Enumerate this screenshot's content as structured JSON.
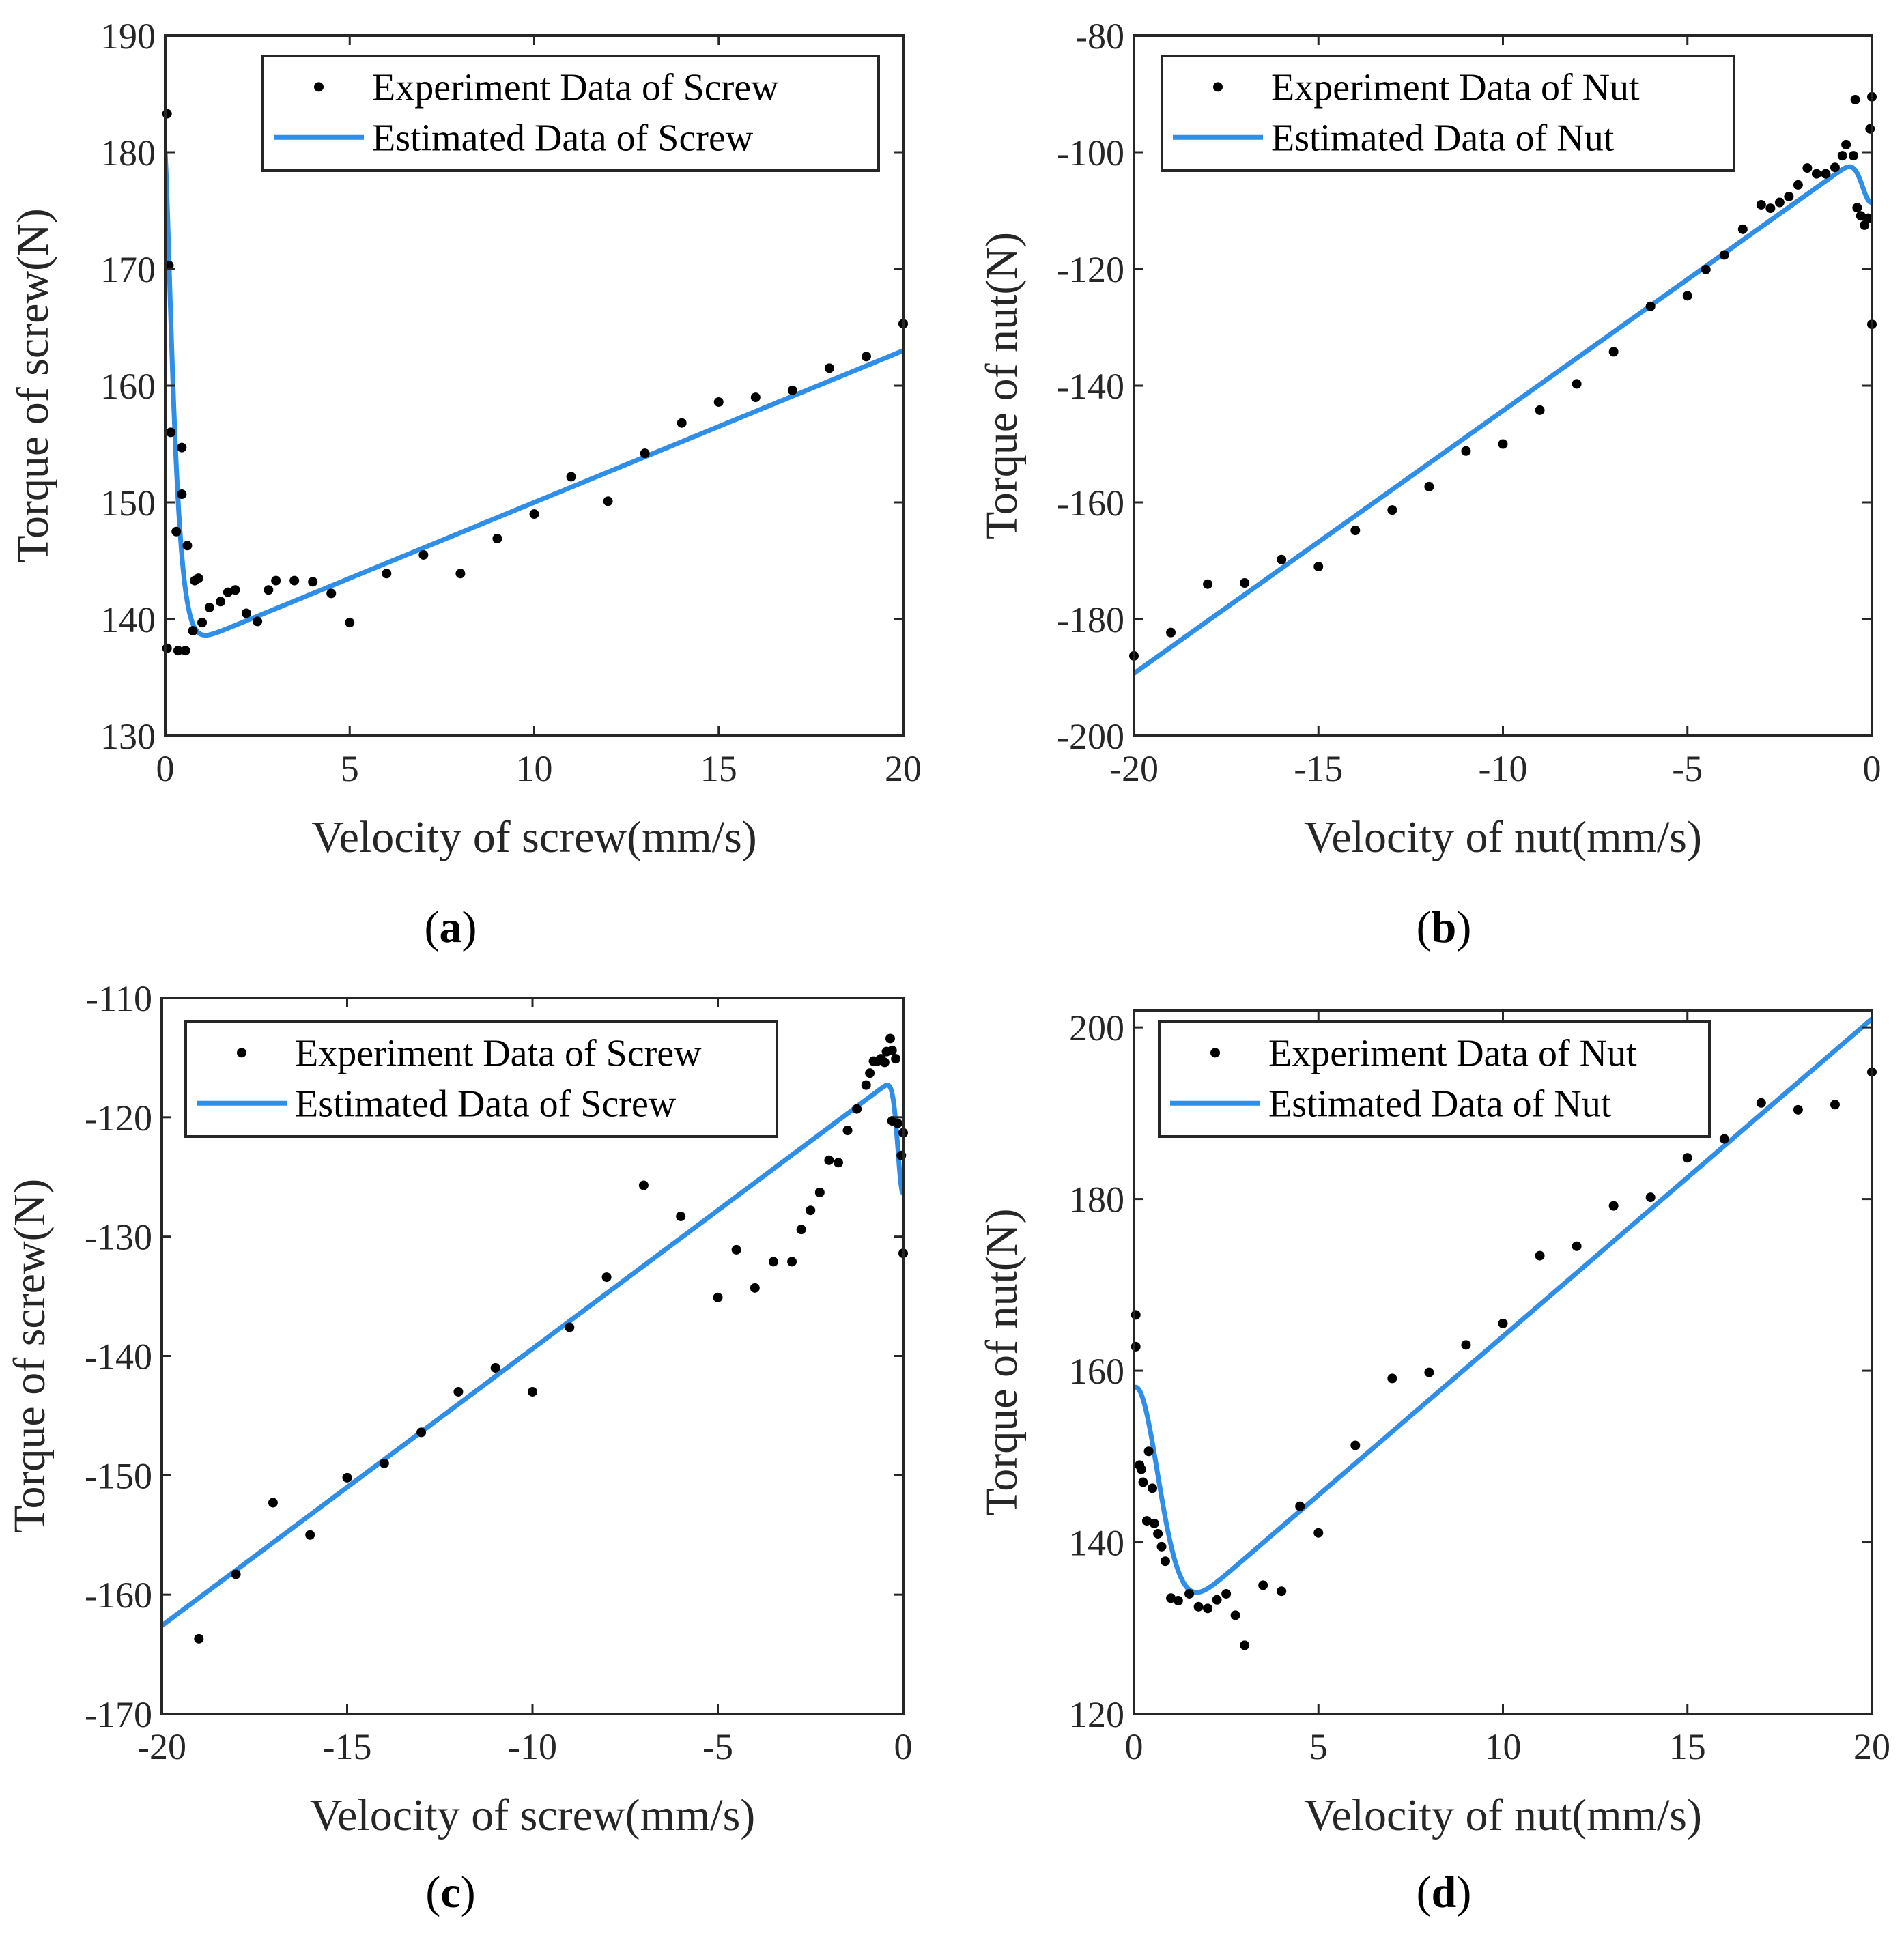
{
  "colors": {
    "estimated": "#2e8ee8",
    "experiment": "#000000",
    "axis": "#262626"
  },
  "chart_data": [
    {
      "type": "scatter+line",
      "panel_label": "a",
      "xlabel": "Velocity of screw(mm/s)",
      "ylabel": "Torque of screw(N)",
      "xlim": [
        0,
        20
      ],
      "ylim": [
        130,
        190
      ],
      "xticks": [
        0,
        5,
        10,
        15,
        20
      ],
      "yticks": [
        130,
        140,
        150,
        160,
        170,
        180,
        190
      ],
      "xtick_labels": [
        "0",
        "5",
        "10",
        "15",
        "20"
      ],
      "ytick_labels": [
        "130",
        "140",
        "150",
        "160",
        "170",
        "180",
        "190"
      ],
      "legend": {
        "position": "top-right",
        "entries": [
          "Experiment Data of Screw",
          "Estimated Data of Screw"
        ]
      },
      "series": [
        {
          "name": "Experiment Data of Screw",
          "kind": "scatter",
          "points": [
            [
              0.05,
              183.3
            ],
            [
              0.1,
              170.3
            ],
            [
              0.15,
              156
            ],
            [
              0.05,
              137.5
            ],
            [
              0.3,
              147.5
            ],
            [
              0.35,
              137.3
            ],
            [
              0.45,
              154.7
            ],
            [
              0.45,
              150.7
            ],
            [
              0.55,
              137.3
            ],
            [
              0.6,
              146.3
            ],
            [
              0.75,
              139
            ],
            [
              0.8,
              143.3
            ],
            [
              0.9,
              143.5
            ],
            [
              1.0,
              139.7
            ],
            [
              1.2,
              141
            ],
            [
              1.5,
              141.5
            ],
            [
              1.7,
              142.3
            ],
            [
              1.9,
              142.5
            ],
            [
              2.2,
              140.5
            ],
            [
              2.5,
              139.8
            ],
            [
              2.8,
              142.5
            ],
            [
              3.0,
              143.3
            ],
            [
              3.5,
              143.3
            ],
            [
              4.0,
              143.2
            ],
            [
              4.5,
              142.2
            ],
            [
              5.0,
              139.7
            ],
            [
              6,
              143.9
            ],
            [
              7,
              145.5
            ],
            [
              8,
              143.9
            ],
            [
              9,
              146.9
            ],
            [
              10,
              149
            ],
            [
              11,
              152.2
            ],
            [
              12,
              150.1
            ],
            [
              13,
              154.2
            ],
            [
              14,
              156.8
            ],
            [
              15,
              158.6
            ],
            [
              16,
              159
            ],
            [
              17,
              159.6
            ],
            [
              18,
              161.5
            ],
            [
              19,
              162.5
            ],
            [
              20,
              165.3
            ]
          ]
        },
        {
          "name": "Estimated Data of Screw",
          "kind": "line",
          "model": "stribeck",
          "coef": {
            "Fc": 137.0,
            "Fs": 180.0,
            "vs": 0.3,
            "b": 1.3,
            "alpha": 1.3
          }
        }
      ]
    },
    {
      "type": "scatter+line",
      "panel_label": "b",
      "xlabel": "Velocity of nut(mm/s)",
      "ylabel": "Torque of nut(N)",
      "xlim": [
        -20,
        0
      ],
      "ylim": [
        -200,
        -80
      ],
      "xticks": [
        -20,
        -15,
        -10,
        -5,
        0
      ],
      "yticks": [
        -200,
        -180,
        -160,
        -140,
        -120,
        -100,
        -80
      ],
      "xtick_labels": [
        "-20",
        "-15",
        "-10",
        "-5",
        "0"
      ],
      "ytick_labels": [
        "-200",
        "-180",
        "-160",
        "-140",
        "-120",
        "-100",
        "-80"
      ],
      "legend": {
        "position": "top-right",
        "entries": [
          "Experiment Data of Nut",
          "Estimated Data of Nut"
        ]
      },
      "series": [
        {
          "name": "Experiment Data of Nut",
          "kind": "scatter",
          "points": [
            [
              -20,
              -186.3
            ],
            [
              -19,
              -182.3
            ],
            [
              -18,
              -174
            ],
            [
              -17,
              -173.8
            ],
            [
              -16,
              -169.8
            ],
            [
              -15,
              -171
            ],
            [
              -14,
              -164.8
            ],
            [
              -13,
              -161.3
            ],
            [
              -12,
              -157.3
            ],
            [
              -11,
              -151.2
            ],
            [
              -10,
              -150
            ],
            [
              -9,
              -144.2
            ],
            [
              -8,
              -139.7
            ],
            [
              -7,
              -134.2
            ],
            [
              -6,
              -126.4
            ],
            [
              -5,
              -124.6
            ],
            [
              -4.5,
              -120.1
            ],
            [
              -4,
              -117.6
            ],
            [
              -3.5,
              -113.2
            ],
            [
              -3,
              -109
            ],
            [
              -2.75,
              -109.6
            ],
            [
              -2.5,
              -108.6
            ],
            [
              -2.25,
              -107.6
            ],
            [
              -2,
              -105.6
            ],
            [
              -1.75,
              -102.7
            ],
            [
              -1.5,
              -103.7
            ],
            [
              -1.25,
              -103.7
            ],
            [
              -1,
              -102.6
            ],
            [
              -0.8,
              -100.6
            ],
            [
              -0.7,
              -98.7
            ],
            [
              -0.5,
              -100.6
            ],
            [
              -0.4,
              -109.5
            ],
            [
              -0.3,
              -110.9
            ],
            [
              -0.2,
              -112.5
            ],
            [
              -0.1,
              -111.3
            ],
            [
              -0.05,
              -96
            ],
            [
              -0.45,
              -91
            ],
            [
              0,
              -90.5
            ],
            [
              0,
              -129.5
            ]
          ]
        },
        {
          "name": "Estimated Data of Nut",
          "kind": "line",
          "model": "stribeck",
          "coef": {
            "Fc": -99.3,
            "Fs": -108.5,
            "vs": 0.35,
            "b": 4.5,
            "alpha": 2
          }
        }
      ]
    },
    {
      "type": "scatter+line",
      "panel_label": "c",
      "xlabel": "Velocity of screw(mm/s)",
      "ylabel": "Torque of screw(N)",
      "xlim": [
        -20,
        0
      ],
      "ylim": [
        -170,
        -110
      ],
      "xticks": [
        -20,
        -15,
        -10,
        -5,
        0
      ],
      "yticks": [
        -170,
        -160,
        -150,
        -140,
        -130,
        -120,
        -110
      ],
      "xtick_labels": [
        "-20",
        "-15",
        "-10",
        "-5",
        "0"
      ],
      "ytick_labels": [
        "-170",
        "-160",
        "-150",
        "-140",
        "-130",
        "-120",
        "-110"
      ],
      "legend": {
        "position": "top-right",
        "entries": [
          "Experiment Data of Screw",
          "Estimated Data of Screw"
        ]
      },
      "series": [
        {
          "name": "Experiment Data of Screw",
          "kind": "scatter",
          "points": [
            [
              -19,
              -163.7
            ],
            [
              -18,
              -158.3
            ],
            [
              -17,
              -152.3
            ],
            [
              -16,
              -155
            ],
            [
              -15,
              -150.2
            ],
            [
              -14,
              -149
            ],
            [
              -13,
              -146.4
            ],
            [
              -12,
              -143
            ],
            [
              -11,
              -141
            ],
            [
              -10,
              -143
            ],
            [
              -9,
              -137.6
            ],
            [
              -8,
              -133.4
            ],
            [
              -7,
              -125.7
            ],
            [
              -6,
              -128.3
            ],
            [
              -5,
              -135.1
            ],
            [
              -4.5,
              -131.1
            ],
            [
              -4,
              -134.3
            ],
            [
              -3.5,
              -132.1
            ],
            [
              -3,
              -132.1
            ],
            [
              -2.75,
              -129.4
            ],
            [
              -2.5,
              -127.8
            ],
            [
              -2.25,
              -126.3
            ],
            [
              -2,
              -123.6
            ],
            [
              -1.75,
              -123.8
            ],
            [
              -1.5,
              -121.1
            ],
            [
              -1.25,
              -119.3
            ],
            [
              -1,
              -117.3
            ],
            [
              -0.9,
              -116.3
            ],
            [
              -0.8,
              -115.3
            ],
            [
              -0.7,
              -115.3
            ],
            [
              -0.6,
              -115.1
            ],
            [
              -0.5,
              -115.4
            ],
            [
              -0.45,
              -114.5
            ],
            [
              -0.35,
              -113.4
            ],
            [
              -0.3,
              -114.4
            ],
            [
              -0.2,
              -115.1
            ],
            [
              -0.3,
              -120.3
            ],
            [
              -0.15,
              -120.5
            ],
            [
              -0.05,
              -123.2
            ],
            [
              0,
              -121.3
            ],
            [
              0,
              -131.4
            ]
          ]
        },
        {
          "name": "Estimated Data of Screw",
          "kind": "line",
          "model": "stribeck",
          "coef": {
            "Fc": -116.2,
            "Fs": -126.4,
            "vs": 0.2,
            "b": 2.32,
            "alpha": 2
          }
        }
      ]
    },
    {
      "type": "scatter+line",
      "panel_label": "d",
      "xlabel": "Velocity of nut(mm/s)",
      "ylabel": "Torque of nut(N)",
      "xlim": [
        0,
        20
      ],
      "ylim": [
        120,
        202
      ],
      "xticks": [
        0,
        5,
        10,
        15,
        20
      ],
      "yticks": [
        120,
        140,
        160,
        180,
        200
      ],
      "xtick_labels": [
        "0",
        "5",
        "10",
        "15",
        "20"
      ],
      "ytick_labels": [
        "120",
        "140",
        "160",
        "180",
        "200"
      ],
      "legend": {
        "position": "top-right",
        "entries": [
          "Experiment Data of Nut",
          "Estimated Data of Nut"
        ]
      },
      "series": [
        {
          "name": "Experiment Data of Nut",
          "kind": "scatter",
          "points": [
            [
              0.05,
              166.5
            ],
            [
              0.05,
              162.8
            ],
            [
              0.15,
              149
            ],
            [
              0.2,
              148.5
            ],
            [
              0.25,
              147
            ],
            [
              0.35,
              142.5
            ],
            [
              0.4,
              150.6
            ],
            [
              0.5,
              146.3
            ],
            [
              0.55,
              142.2
            ],
            [
              0.65,
              141
            ],
            [
              0.75,
              139.5
            ],
            [
              0.85,
              137.8
            ],
            [
              1.0,
              133.5
            ],
            [
              1.2,
              133.2
            ],
            [
              1.5,
              134
            ],
            [
              1.75,
              132.5
            ],
            [
              2,
              132.3
            ],
            [
              2.25,
              133.3
            ],
            [
              2.5,
              134
            ],
            [
              2.75,
              131.5
            ],
            [
              3,
              128
            ],
            [
              3.5,
              135
            ],
            [
              4,
              134.3
            ],
            [
              4.5,
              144.2
            ],
            [
              5,
              141.1
            ],
            [
              6,
              151.3
            ],
            [
              7,
              159.1
            ],
            [
              8,
              159.8
            ],
            [
              9,
              163
            ],
            [
              10,
              165.5
            ],
            [
              11,
              173.4
            ],
            [
              12,
              174.5
            ],
            [
              13,
              179.2
            ],
            [
              14,
              180.2
            ],
            [
              15,
              184.8
            ],
            [
              16,
              187
            ],
            [
              17,
              191.2
            ],
            [
              18,
              190.4
            ],
            [
              19,
              191
            ],
            [
              20,
              194.8
            ]
          ]
        },
        {
          "name": "Estimated Data of Nut",
          "kind": "line",
          "model": "stribeck",
          "coef": {
            "Fc": 127.0,
            "Fs": 158.0,
            "vs": 0.9,
            "b": 3.7,
            "alpha": 2
          }
        }
      ]
    }
  ]
}
